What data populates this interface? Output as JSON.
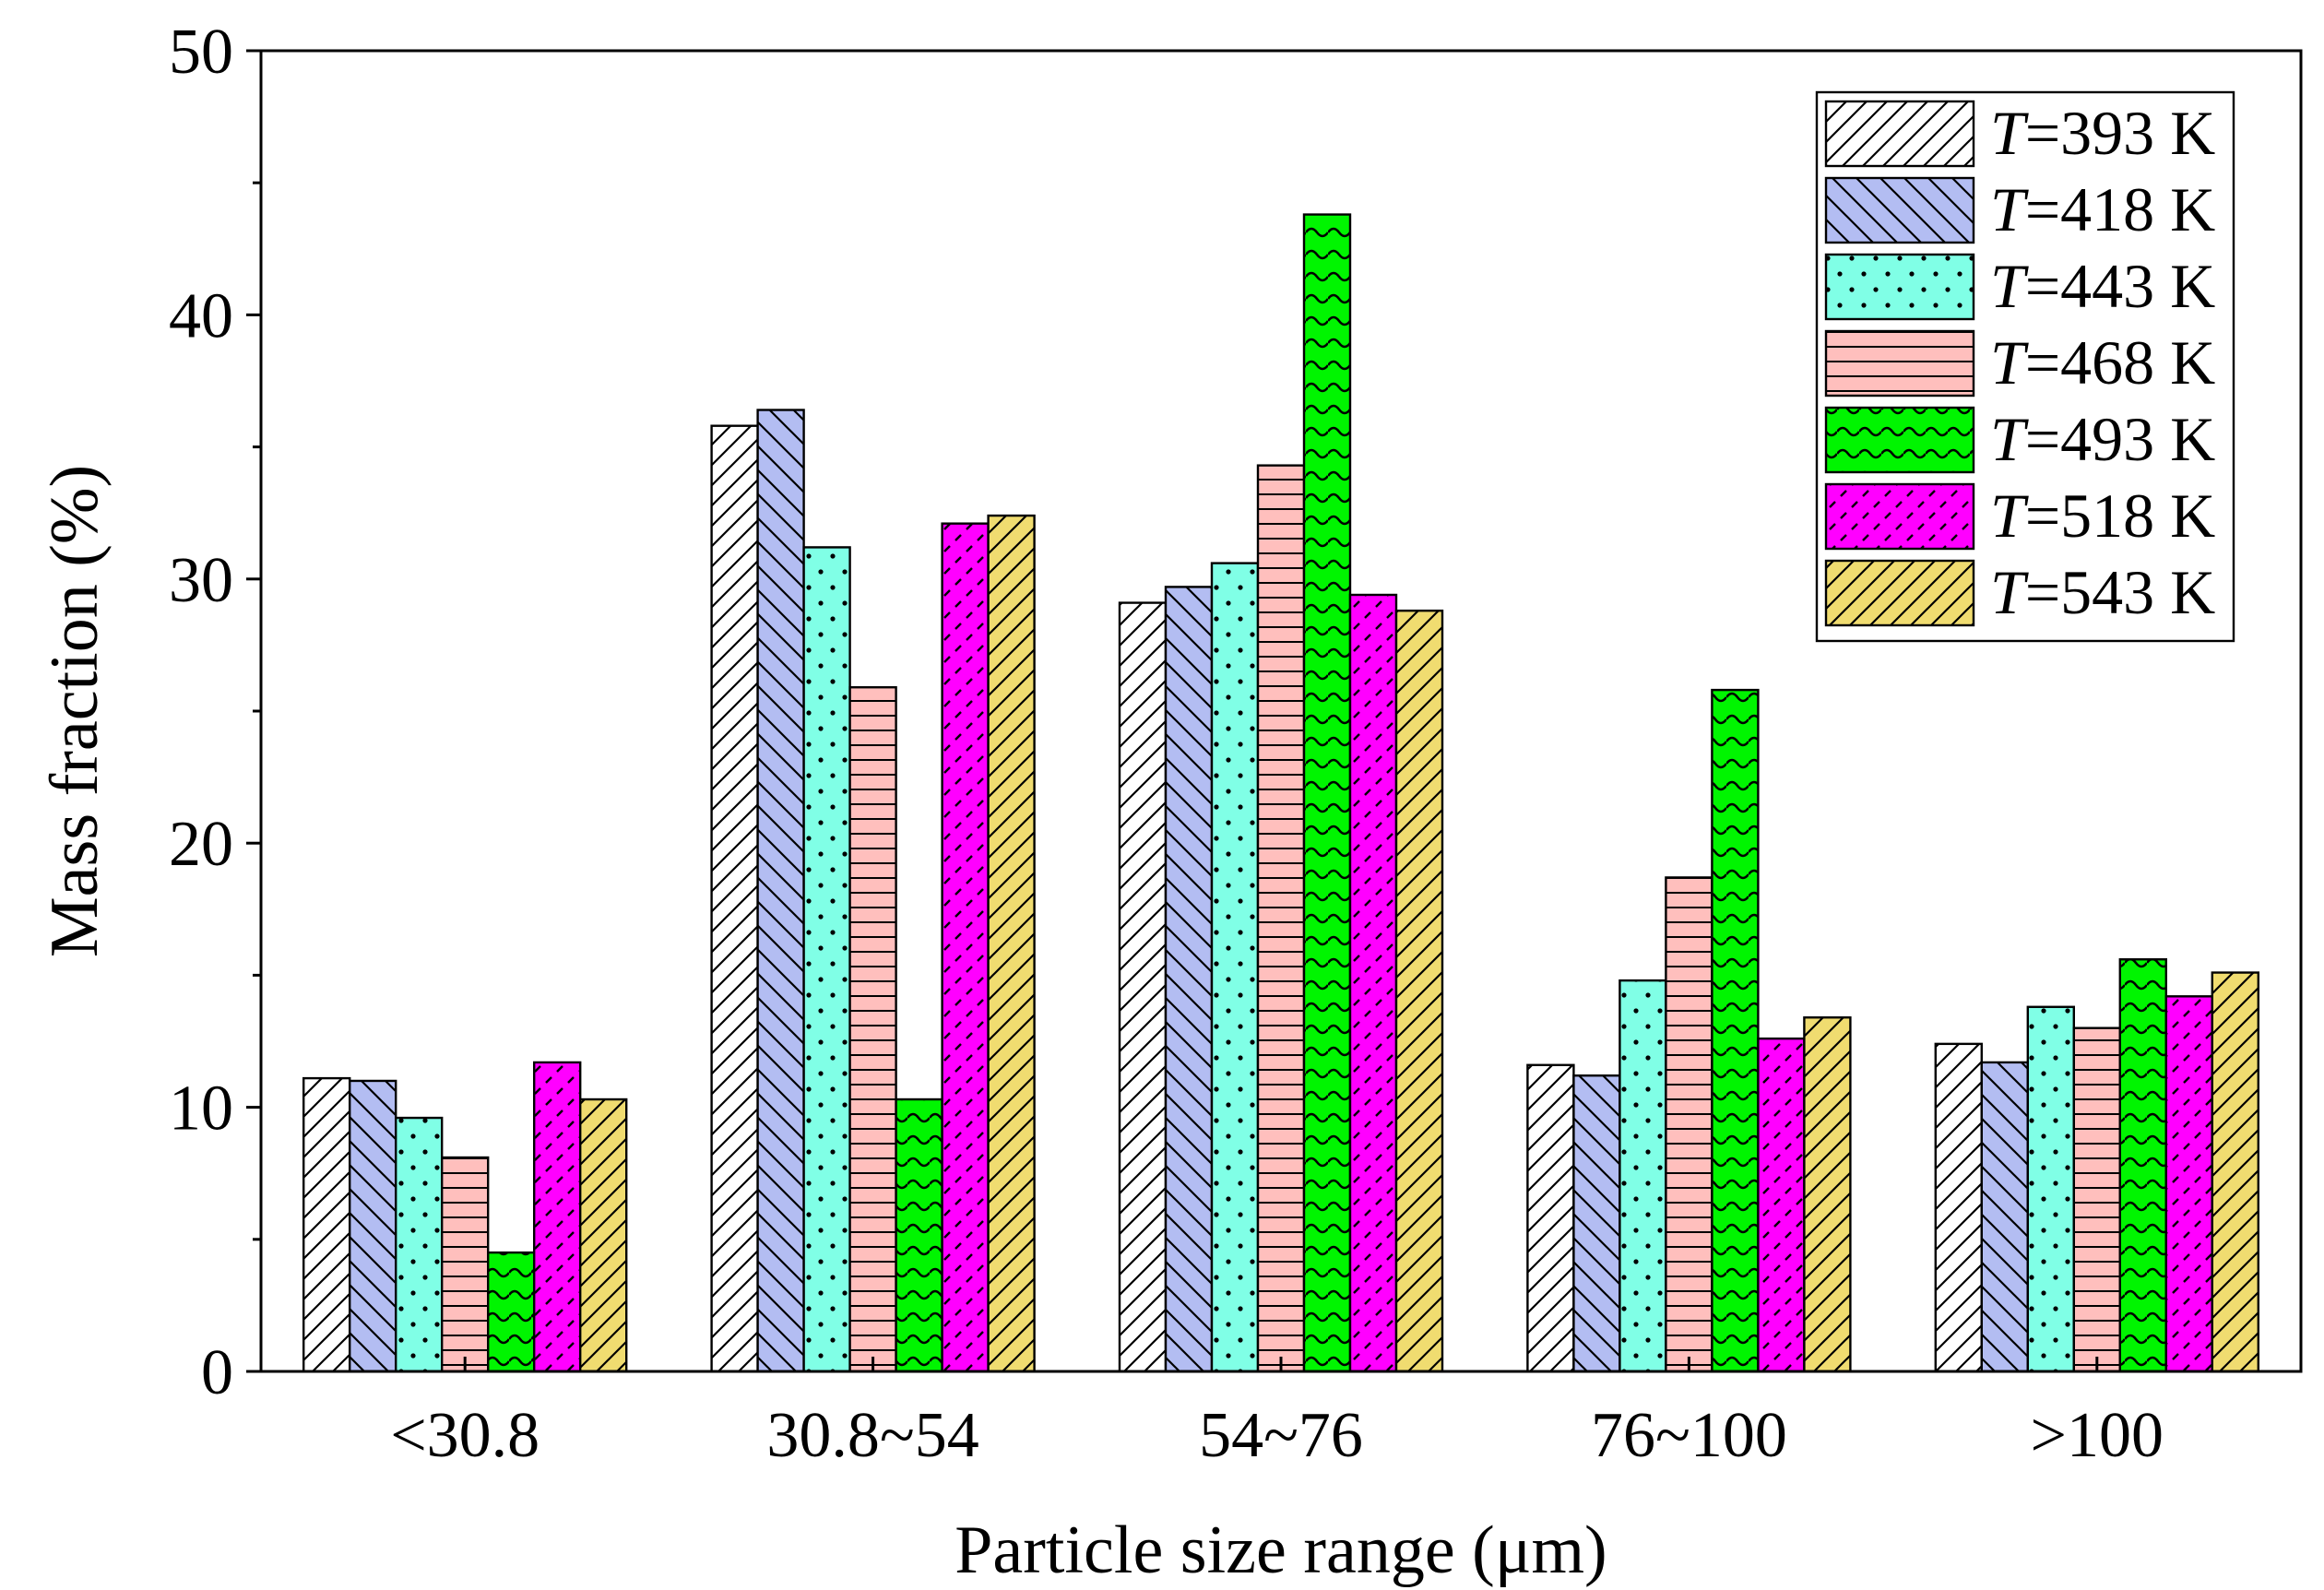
{
  "chart_data": {
    "type": "bar",
    "xlabel": "Particle size range (μm)",
    "ylabel": "Mass fraction (%)",
    "ylim": [
      0,
      50
    ],
    "yticks": [
      0,
      10,
      20,
      30,
      40,
      50
    ],
    "categories": [
      "<30.8",
      "30.8~54",
      "54~76",
      "76~100",
      ">100"
    ],
    "legend_position": "top-right",
    "series": [
      {
        "name": "T=393 K",
        "name_italic": "T",
        "name_rest": "=393 K",
        "color": "#ffffff",
        "pattern": "diag-right",
        "values": [
          11.1,
          35.8,
          29.1,
          11.6,
          12.4
        ]
      },
      {
        "name": "T=418 K",
        "name_italic": "T",
        "name_rest": "=418 K",
        "color": "#b3bdf2",
        "pattern": "diag-left",
        "values": [
          11.0,
          36.4,
          29.7,
          11.2,
          11.7
        ]
      },
      {
        "name": "T=443 K",
        "name_italic": "T",
        "name_rest": "=443 K",
        "color": "#80ffe6",
        "pattern": "dots",
        "values": [
          9.6,
          31.2,
          30.6,
          14.8,
          13.8
        ]
      },
      {
        "name": "T=468 K",
        "name_italic": "T",
        "name_rest": "=468 K",
        "color": "#ffbfbd",
        "pattern": "horizontal",
        "values": [
          8.1,
          25.9,
          34.3,
          18.7,
          13.0
        ]
      },
      {
        "name": "T=493 K",
        "name_italic": "T",
        "name_rest": "=493 K",
        "color": "#00f500",
        "pattern": "wave",
        "values": [
          4.5,
          10.3,
          43.8,
          25.8,
          15.6
        ]
      },
      {
        "name": "T=518 K",
        "name_italic": "T",
        "name_rest": "=518 K",
        "color": "#ff00ff",
        "pattern": "dashes",
        "values": [
          11.7,
          32.1,
          29.4,
          12.6,
          14.2
        ]
      },
      {
        "name": "T=543 K",
        "name_italic": "T",
        "name_rest": "=543 K",
        "color": "#f0dc70",
        "pattern": "diag-right",
        "values": [
          10.3,
          32.4,
          28.8,
          13.4,
          15.1
        ]
      }
    ]
  }
}
